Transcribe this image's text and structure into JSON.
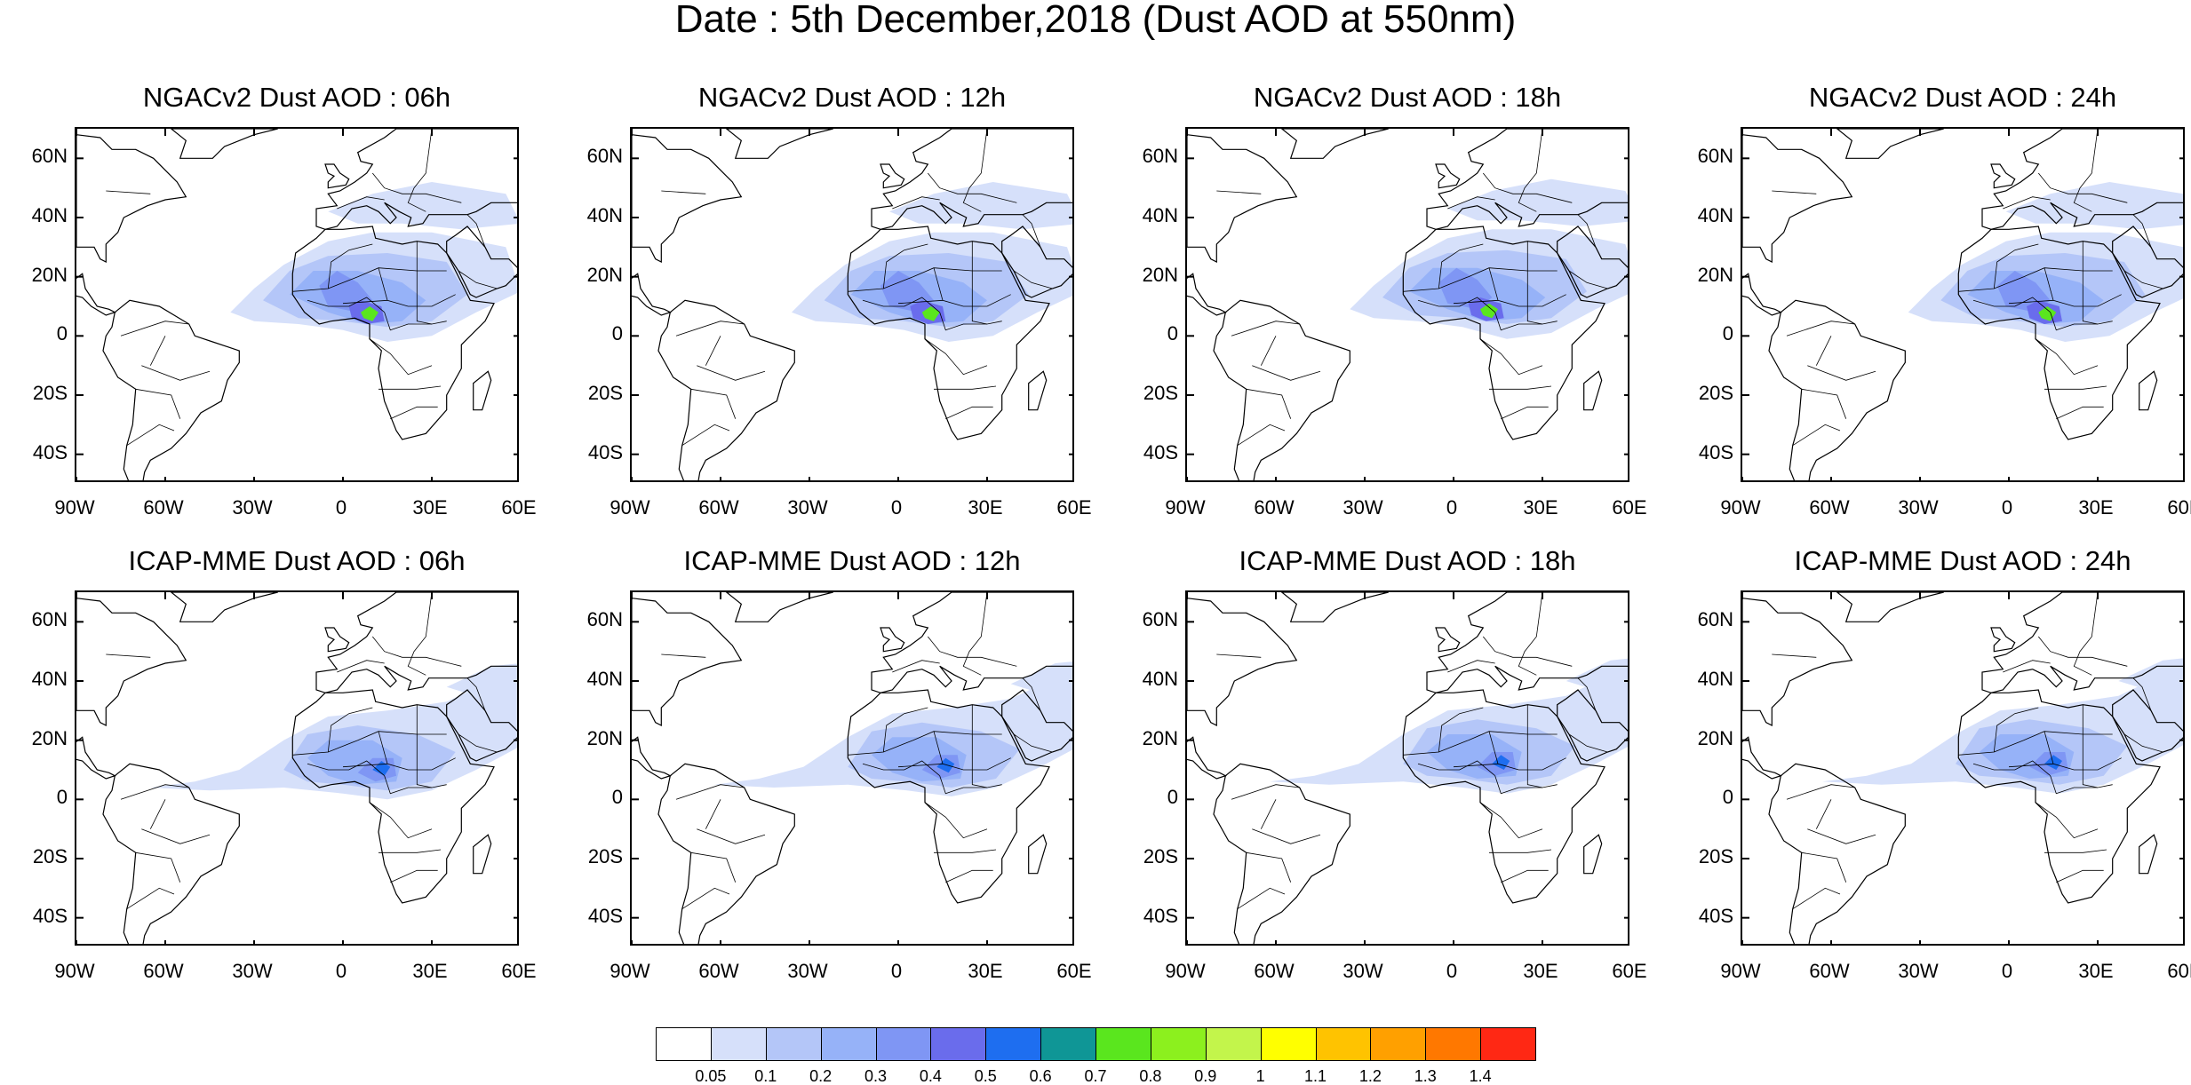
{
  "title": "Date : 5th December,2018 (Dust AOD at 550nm)",
  "map_extent": {
    "lon": [
      -90,
      60
    ],
    "lat": [
      -50,
      70
    ]
  },
  "lat_ticks": [
    {
      "value": 60,
      "label": "60N"
    },
    {
      "value": 40,
      "label": "40N"
    },
    {
      "value": 20,
      "label": "20N"
    },
    {
      "value": 0,
      "label": "0"
    },
    {
      "value": -20,
      "label": "20S"
    },
    {
      "value": -40,
      "label": "40S"
    }
  ],
  "lon_ticks": [
    {
      "value": -90,
      "label": "90W"
    },
    {
      "value": -60,
      "label": "60W"
    },
    {
      "value": -30,
      "label": "30W"
    },
    {
      "value": 0,
      "label": "0"
    },
    {
      "value": 30,
      "label": "30E"
    },
    {
      "value": 60,
      "label": "60E"
    }
  ],
  "panels": [
    {
      "title": "NGACv2 Dust AOD : 06h"
    },
    {
      "title": "NGACv2 Dust AOD : 12h"
    },
    {
      "title": "NGACv2 Dust AOD : 18h"
    },
    {
      "title": "NGACv2 Dust AOD : 24h"
    },
    {
      "title": "ICAP-MME Dust AOD : 06h"
    },
    {
      "title": "ICAP-MME Dust AOD : 12h"
    },
    {
      "title": "ICAP-MME Dust AOD : 18h"
    },
    {
      "title": "ICAP-MME Dust AOD : 24h"
    }
  ],
  "colorbar": {
    "colors": [
      "#ffffff",
      "#d6e0fa",
      "#b4c6f8",
      "#96b2f8",
      "#7f96f4",
      "#6a6cec",
      "#1e6ef0",
      "#0f9696",
      "#5ae61e",
      "#8cf01e",
      "#c3f54b",
      "#ffff00",
      "#ffc300",
      "#ffa000",
      "#ff7800",
      "#ff2814"
    ],
    "labels": [
      "0.05",
      "0.1",
      "0.2",
      "0.3",
      "0.4",
      "0.5",
      "0.6",
      "0.7",
      "0.8",
      "0.9",
      "1",
      "1.1",
      "1.2",
      "1.3",
      "1.4"
    ]
  }
}
